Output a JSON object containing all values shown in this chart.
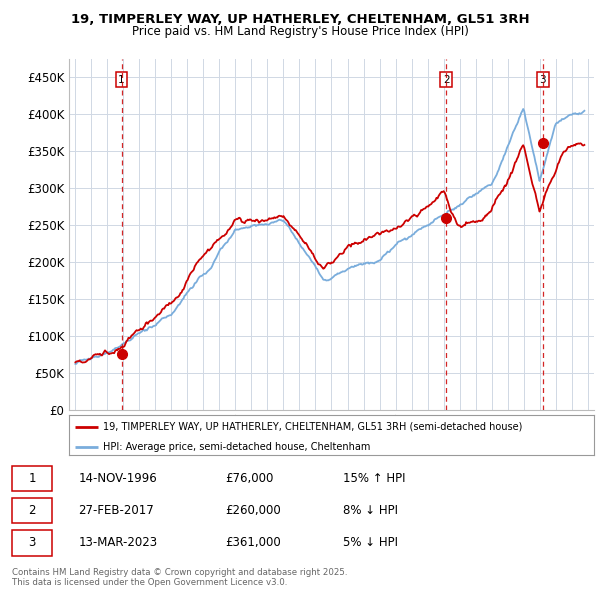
{
  "title_line1": "19, TIMPERLEY WAY, UP HATHERLEY, CHELTENHAM, GL51 3RH",
  "title_line2": "Price paid vs. HM Land Registry's House Price Index (HPI)",
  "ylim": [
    0,
    475000
  ],
  "yticks": [
    0,
    50000,
    100000,
    150000,
    200000,
    250000,
    300000,
    350000,
    400000,
    450000
  ],
  "xlim_start": 1993.6,
  "xlim_end": 2026.4,
  "sale_dates": [
    1996.88,
    2017.16,
    2023.2
  ],
  "sale_prices": [
    76000,
    260000,
    361000
  ],
  "sale_labels": [
    "1",
    "2",
    "3"
  ],
  "legend_line1": "19, TIMPERLEY WAY, UP HATHERLEY, CHELTENHAM, GL51 3RH (semi-detached house)",
  "legend_line2": "HPI: Average price, semi-detached house, Cheltenham",
  "table_data": [
    [
      "1",
      "14-NOV-1996",
      "£76,000",
      "15% ↑ HPI"
    ],
    [
      "2",
      "27-FEB-2017",
      "£260,000",
      "8% ↓ HPI"
    ],
    [
      "3",
      "13-MAR-2023",
      "£361,000",
      "5% ↓ HPI"
    ]
  ],
  "footnote": "Contains HM Land Registry data © Crown copyright and database right 2025.\nThis data is licensed under the Open Government Licence v3.0.",
  "line_color_red": "#cc0000",
  "line_color_blue": "#7aaddc",
  "grid_color": "#d0d8e4",
  "bg_color": "#ffffff"
}
